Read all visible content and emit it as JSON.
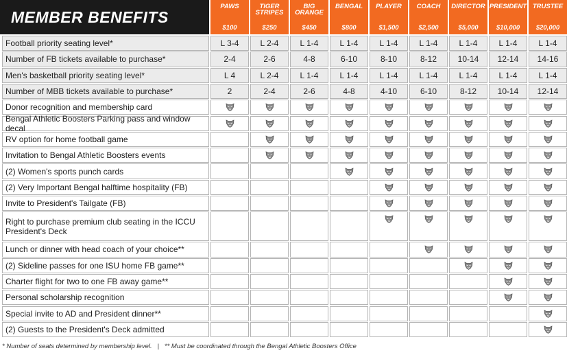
{
  "header": {
    "title": "MEMBER BENEFITS"
  },
  "tiers": [
    {
      "name": "PAWS",
      "price": "$100"
    },
    {
      "name": "TIGER STRIPES",
      "price": "$250"
    },
    {
      "name": "BIG ORANGE",
      "price": "$450"
    },
    {
      "name": "BENGAL",
      "price": "$800"
    },
    {
      "name": "PLAYER",
      "price": "$1,500"
    },
    {
      "name": "COACH",
      "price": "$2,500"
    },
    {
      "name": "DIRECTOR",
      "price": "$5,000"
    },
    {
      "name": "PRESIDENT",
      "price": "$10,000"
    },
    {
      "name": "TRUSTEE",
      "price": "$20,000"
    }
  ],
  "rows": [
    {
      "label": "Football priority seating level*",
      "cells": [
        "L 3-4",
        "L 2-4",
        "L 1-4",
        "L 1-4",
        "L 1-4",
        "L 1-4",
        "L 1-4",
        "L 1-4",
        "L 1-4"
      ]
    },
    {
      "label": "Number of FB tickets available to purchase*",
      "cells": [
        "2-4",
        "2-6",
        "4-8",
        "6-10",
        "8-10",
        "8-12",
        "10-14",
        "12-14",
        "14-16"
      ]
    },
    {
      "label": "Men's basketball priority seating level*",
      "cells": [
        "L 4",
        "L 2-4",
        "L 1-4",
        "L 1-4",
        "L 1-4",
        "L 1-4",
        "L 1-4",
        "L 1-4",
        "L 1-4"
      ]
    },
    {
      "label": "Number of MBB tickets available to purchase*",
      "cells": [
        "2",
        "2-4",
        "2-6",
        "4-8",
        "4-10",
        "6-10",
        "8-12",
        "10-14",
        "12-14"
      ]
    },
    {
      "label": "Donor recognition and  membership card",
      "cells": [
        true,
        true,
        true,
        true,
        true,
        true,
        true,
        true,
        true
      ]
    },
    {
      "label": "Bengal Athletic Boosters Parking pass and window decal",
      "cells": [
        true,
        true,
        true,
        true,
        true,
        true,
        true,
        true,
        true
      ]
    },
    {
      "label": "RV option for home football game",
      "cells": [
        null,
        true,
        true,
        true,
        true,
        true,
        true,
        true,
        true
      ]
    },
    {
      "label": "Invitation to Bengal Athletic Boosters events",
      "cells": [
        null,
        true,
        true,
        true,
        true,
        true,
        true,
        true,
        true
      ]
    },
    {
      "label": "(2) Women's sports punch cards",
      "cells": [
        null,
        null,
        null,
        true,
        true,
        true,
        true,
        true,
        true
      ]
    },
    {
      "label": "(2) Very Important Bengal halftime hospitality (FB)",
      "cells": [
        null,
        null,
        null,
        null,
        true,
        true,
        true,
        true,
        true
      ]
    },
    {
      "label": "Invite to President's Tailgate (FB)",
      "cells": [
        null,
        null,
        null,
        null,
        true,
        true,
        true,
        true,
        true
      ]
    },
    {
      "label": "Right to purchase premium club seating in the ICCU President's Deck",
      "cells": [
        null,
        null,
        null,
        null,
        true,
        true,
        true,
        true,
        true
      ]
    },
    {
      "label": "Lunch or dinner with head coach of your choice**",
      "cells": [
        null,
        null,
        null,
        null,
        null,
        true,
        true,
        true,
        true
      ]
    },
    {
      "label": "(2) Sideline passes for one ISU home FB game**",
      "cells": [
        null,
        null,
        null,
        null,
        null,
        null,
        true,
        true,
        true
      ]
    },
    {
      "label": "Charter flight for two to one FB away game**",
      "cells": [
        null,
        null,
        null,
        null,
        null,
        null,
        null,
        true,
        true
      ]
    },
    {
      "label": "Personal scholarship recognition",
      "cells": [
        null,
        null,
        null,
        null,
        null,
        null,
        null,
        true,
        true
      ]
    },
    {
      "label": "Special invite to AD and President dinner**",
      "cells": [
        null,
        null,
        null,
        null,
        null,
        null,
        null,
        null,
        true
      ]
    },
    {
      "label": "(2) Guests to the President's Deck admitted",
      "cells": [
        null,
        null,
        null,
        null,
        null,
        null,
        null,
        null,
        true
      ]
    }
  ],
  "footnote": "* Number of seats determined by membership level.   |   ** Must be coordinated through the Bengal Athletic Boosters Office"
}
